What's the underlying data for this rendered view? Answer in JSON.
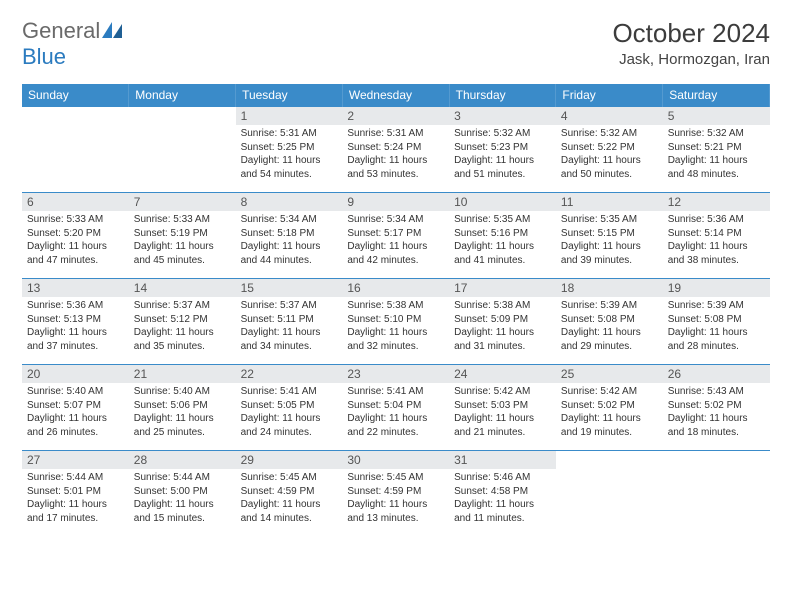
{
  "logo": {
    "word1": "General",
    "word2": "Blue"
  },
  "title": "October 2024",
  "location": "Jask, Hormozgan, Iran",
  "colors": {
    "header_bg": "#3a8bc9",
    "header_text": "#ffffff",
    "daynum_bg": "#e7e9eb",
    "border": "#3a8bc9",
    "logo_gray": "#6a6a6a",
    "logo_blue": "#2b7bbf"
  },
  "weekdays": [
    "Sunday",
    "Monday",
    "Tuesday",
    "Wednesday",
    "Thursday",
    "Friday",
    "Saturday"
  ],
  "weeks": [
    [
      null,
      null,
      {
        "n": "1",
        "sunrise": "5:31 AM",
        "sunset": "5:25 PM",
        "dl": "11 hours and 54 minutes."
      },
      {
        "n": "2",
        "sunrise": "5:31 AM",
        "sunset": "5:24 PM",
        "dl": "11 hours and 53 minutes."
      },
      {
        "n": "3",
        "sunrise": "5:32 AM",
        "sunset": "5:23 PM",
        "dl": "11 hours and 51 minutes."
      },
      {
        "n": "4",
        "sunrise": "5:32 AM",
        "sunset": "5:22 PM",
        "dl": "11 hours and 50 minutes."
      },
      {
        "n": "5",
        "sunrise": "5:32 AM",
        "sunset": "5:21 PM",
        "dl": "11 hours and 48 minutes."
      }
    ],
    [
      {
        "n": "6",
        "sunrise": "5:33 AM",
        "sunset": "5:20 PM",
        "dl": "11 hours and 47 minutes."
      },
      {
        "n": "7",
        "sunrise": "5:33 AM",
        "sunset": "5:19 PM",
        "dl": "11 hours and 45 minutes."
      },
      {
        "n": "8",
        "sunrise": "5:34 AM",
        "sunset": "5:18 PM",
        "dl": "11 hours and 44 minutes."
      },
      {
        "n": "9",
        "sunrise": "5:34 AM",
        "sunset": "5:17 PM",
        "dl": "11 hours and 42 minutes."
      },
      {
        "n": "10",
        "sunrise": "5:35 AM",
        "sunset": "5:16 PM",
        "dl": "11 hours and 41 minutes."
      },
      {
        "n": "11",
        "sunrise": "5:35 AM",
        "sunset": "5:15 PM",
        "dl": "11 hours and 39 minutes."
      },
      {
        "n": "12",
        "sunrise": "5:36 AM",
        "sunset": "5:14 PM",
        "dl": "11 hours and 38 minutes."
      }
    ],
    [
      {
        "n": "13",
        "sunrise": "5:36 AM",
        "sunset": "5:13 PM",
        "dl": "11 hours and 37 minutes."
      },
      {
        "n": "14",
        "sunrise": "5:37 AM",
        "sunset": "5:12 PM",
        "dl": "11 hours and 35 minutes."
      },
      {
        "n": "15",
        "sunrise": "5:37 AM",
        "sunset": "5:11 PM",
        "dl": "11 hours and 34 minutes."
      },
      {
        "n": "16",
        "sunrise": "5:38 AM",
        "sunset": "5:10 PM",
        "dl": "11 hours and 32 minutes."
      },
      {
        "n": "17",
        "sunrise": "5:38 AM",
        "sunset": "5:09 PM",
        "dl": "11 hours and 31 minutes."
      },
      {
        "n": "18",
        "sunrise": "5:39 AM",
        "sunset": "5:08 PM",
        "dl": "11 hours and 29 minutes."
      },
      {
        "n": "19",
        "sunrise": "5:39 AM",
        "sunset": "5:08 PM",
        "dl": "11 hours and 28 minutes."
      }
    ],
    [
      {
        "n": "20",
        "sunrise": "5:40 AM",
        "sunset": "5:07 PM",
        "dl": "11 hours and 26 minutes."
      },
      {
        "n": "21",
        "sunrise": "5:40 AM",
        "sunset": "5:06 PM",
        "dl": "11 hours and 25 minutes."
      },
      {
        "n": "22",
        "sunrise": "5:41 AM",
        "sunset": "5:05 PM",
        "dl": "11 hours and 24 minutes."
      },
      {
        "n": "23",
        "sunrise": "5:41 AM",
        "sunset": "5:04 PM",
        "dl": "11 hours and 22 minutes."
      },
      {
        "n": "24",
        "sunrise": "5:42 AM",
        "sunset": "5:03 PM",
        "dl": "11 hours and 21 minutes."
      },
      {
        "n": "25",
        "sunrise": "5:42 AM",
        "sunset": "5:02 PM",
        "dl": "11 hours and 19 minutes."
      },
      {
        "n": "26",
        "sunrise": "5:43 AM",
        "sunset": "5:02 PM",
        "dl": "11 hours and 18 minutes."
      }
    ],
    [
      {
        "n": "27",
        "sunrise": "5:44 AM",
        "sunset": "5:01 PM",
        "dl": "11 hours and 17 minutes."
      },
      {
        "n": "28",
        "sunrise": "5:44 AM",
        "sunset": "5:00 PM",
        "dl": "11 hours and 15 minutes."
      },
      {
        "n": "29",
        "sunrise": "5:45 AM",
        "sunset": "4:59 PM",
        "dl": "11 hours and 14 minutes."
      },
      {
        "n": "30",
        "sunrise": "5:45 AM",
        "sunset": "4:59 PM",
        "dl": "11 hours and 13 minutes."
      },
      {
        "n": "31",
        "sunrise": "5:46 AM",
        "sunset": "4:58 PM",
        "dl": "11 hours and 11 minutes."
      },
      null,
      null
    ]
  ]
}
